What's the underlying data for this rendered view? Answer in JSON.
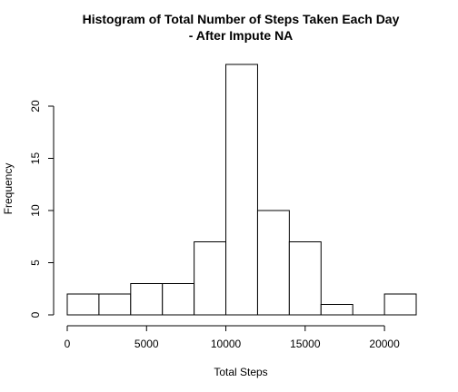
{
  "chart_data": {
    "type": "bar",
    "title_line1": "Histogram of Total Number of Steps Taken Each Day",
    "title_line2": "- After Impute NA",
    "xlabel": "Total Steps",
    "ylabel": "Frequency",
    "bins": [
      {
        "start": 0,
        "end": 2000,
        "count": 2
      },
      {
        "start": 2000,
        "end": 4000,
        "count": 2
      },
      {
        "start": 4000,
        "end": 6000,
        "count": 3
      },
      {
        "start": 6000,
        "end": 8000,
        "count": 3
      },
      {
        "start": 8000,
        "end": 10000,
        "count": 7
      },
      {
        "start": 10000,
        "end": 12000,
        "count": 24
      },
      {
        "start": 12000,
        "end": 14000,
        "count": 10
      },
      {
        "start": 14000,
        "end": 16000,
        "count": 7
      },
      {
        "start": 16000,
        "end": 18000,
        "count": 1
      },
      {
        "start": 18000,
        "end": 20000,
        "count": 0
      },
      {
        "start": 20000,
        "end": 22000,
        "count": 2
      }
    ],
    "xlim": [
      0,
      22000
    ],
    "ylim": [
      0,
      24
    ],
    "xticks": [
      0,
      5000,
      10000,
      15000,
      20000
    ],
    "yticks": [
      0,
      5,
      10,
      15,
      20
    ],
    "fill_color": "#ffffff",
    "stroke_color": "#000000",
    "grid": false,
    "legend": "none"
  }
}
